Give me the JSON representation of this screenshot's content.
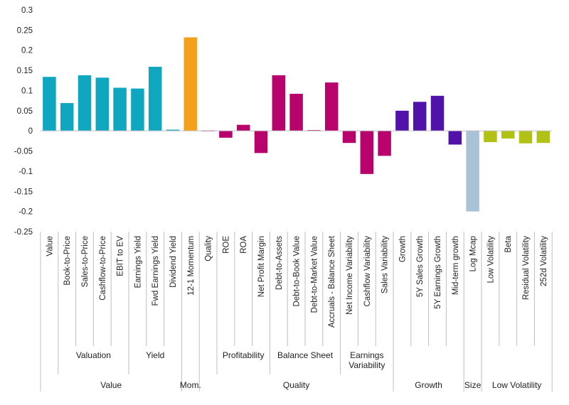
{
  "chart_data": {
    "type": "bar",
    "title": "",
    "xlabel": "",
    "ylabel": "",
    "ylim": [
      -0.25,
      0.3
    ],
    "yticks": [
      0.3,
      0.25,
      0.2,
      0.15,
      0.1,
      0.05,
      0,
      -0.05,
      -0.1,
      -0.15,
      -0.2,
      -0.25
    ],
    "ytick_labels": [
      "0.3",
      "0.25",
      "0.2",
      "0.15",
      "0.1",
      "0.05",
      "0",
      "-0.05",
      "-0.1",
      "-0.15",
      "-0.2",
      "-0.25"
    ],
    "grid": false,
    "categories": [
      "Value",
      "Book-to-Price",
      "Sales-to-Price",
      "Cashflow-to-Price",
      "EBIT to EV",
      "Earnings Yield",
      "Fwd Earnings Yield",
      "Dividend Yield",
      "12-1 Momentum",
      "Quality",
      "ROE",
      "ROA",
      "Net Profit Margin",
      "Debt-to-Assets",
      "Debt-to-Book Value",
      "Debt-to-Market Value",
      "Accruals - Balance Sheet",
      "Net Income Variability",
      "Cashflow Variability",
      "Sales Variability",
      "Growth",
      "5Y Sales Growth",
      "5Y Earnings Growth",
      "Mid-term growth",
      "Log Mcap",
      "Low Volatility",
      "Beta",
      "Residual Volatility",
      "252d Volatility"
    ],
    "values": [
      0.134,
      0.069,
      0.138,
      0.132,
      0.107,
      0.105,
      0.159,
      0.003,
      0.232,
      0.001,
      -0.017,
      0.015,
      -0.055,
      0.138,
      0.092,
      0.002,
      0.12,
      -0.03,
      -0.107,
      -0.062,
      0.05,
      0.072,
      0.087,
      -0.034,
      -0.2,
      -0.028,
      -0.019,
      -0.031,
      -0.03
    ],
    "bar_colors": [
      "#0fa7c0",
      "#0fa7c0",
      "#0fa7c0",
      "#0fa7c0",
      "#0fa7c0",
      "#0fa7c0",
      "#0fa7c0",
      "#0fa7c0",
      "#f5a01a",
      "#b7036b",
      "#b7036b",
      "#b7036b",
      "#b7036b",
      "#b7036b",
      "#b7036b",
      "#b7036b",
      "#b7036b",
      "#b7036b",
      "#b7036b",
      "#b7036b",
      "#5012a8",
      "#5012a8",
      "#5012a8",
      "#5012a8",
      "#a9c2d8",
      "#b2c116",
      "#b2c116",
      "#b2c116",
      "#b2c116"
    ],
    "subgroups": [
      {
        "label": "Valuation",
        "from": 1,
        "to": 4
      },
      {
        "label": "Yield",
        "from": 5,
        "to": 7
      },
      {
        "label": "Profitability",
        "from": 10,
        "to": 12
      },
      {
        "label": "Balance Sheet",
        "from": 13,
        "to": 16
      },
      {
        "label": "Earnings Variability",
        "from": 17,
        "to": 19
      }
    ],
    "groups": [
      {
        "label": "Value",
        "from": 0,
        "to": 7
      },
      {
        "label": "Mom.",
        "from": 8,
        "to": 8
      },
      {
        "label": "Quality",
        "from": 9,
        "to": 19
      },
      {
        "label": "Growth",
        "from": 20,
        "to": 23
      },
      {
        "label": "Size",
        "from": 24,
        "to": 24
      },
      {
        "label": "Low Volatility",
        "from": 25,
        "to": 28
      }
    ]
  }
}
